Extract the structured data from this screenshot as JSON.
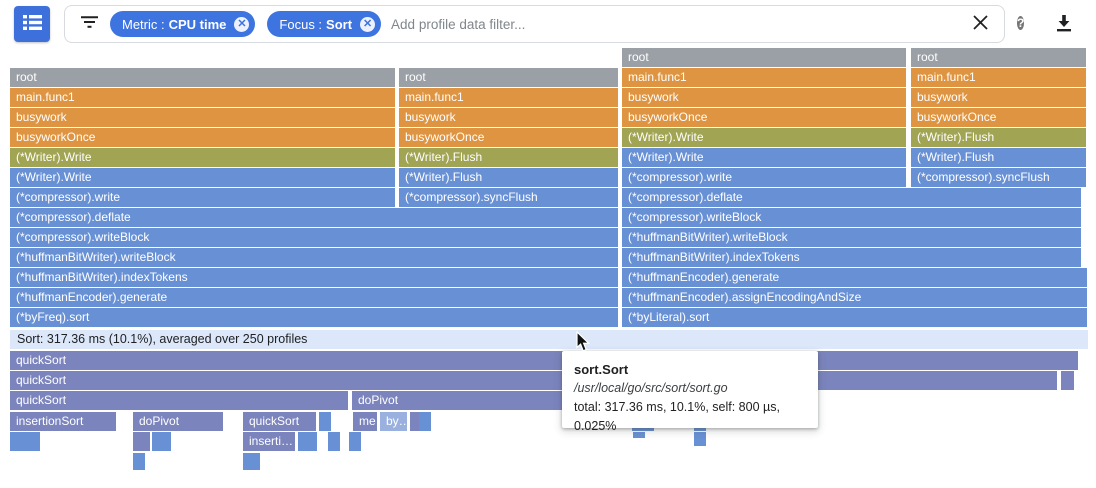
{
  "toolbar": {
    "menu_button": {
      "icon": "view-list-icon"
    },
    "filter_icon": "filter-list-icon",
    "chips": [
      {
        "prefix": "Metric :",
        "value": "CPU time",
        "remove_icon": "cancel-icon"
      },
      {
        "prefix": "Focus :",
        "value": "Sort",
        "remove_icon": "cancel-icon"
      }
    ],
    "filter_input": {
      "value": "",
      "placeholder": "Add profile data filter..."
    },
    "clear_button": "clear-icon",
    "help_button": "help-icon",
    "help_glyph": "?",
    "download_button": "download-icon"
  },
  "colors": {
    "button_blue": "#3e70dc",
    "chip_blue": "#3d74e0",
    "frame_gray": "#9aa0a6",
    "frame_orange": "#de9440",
    "frame_olive": "#a1a453",
    "frame_blue": "#6891d5",
    "frame_purple": "#7b84bd",
    "frame_lightblue": "#9ab1e0",
    "banner_bg": "#dce8f9"
  },
  "banner": {
    "text": "Sort: 317.36 ms (10.1%), averaged over 250 profiles"
  },
  "tooltip": {
    "title": "sort.Sort",
    "path": "/usr/local/go/src/sort/sort.go",
    "stats": "total: 317.36 ms, 10.1%, self: 800 µs, 0.025%"
  },
  "chart_data": {
    "type": "flame_graph",
    "metric": "CPU time",
    "focus": "Sort",
    "focused_frame": {
      "function": "sort.Sort",
      "total": "317.36 ms",
      "total_percent": 10.1,
      "self": "800 µs",
      "self_percent": 0.025,
      "profiles_averaged": 250
    },
    "frames": [
      [
        622,
        48,
        284,
        "g",
        "root"
      ],
      [
        911,
        48,
        175,
        "g",
        "root"
      ],
      [
        622,
        68,
        284,
        "o",
        "main.func1"
      ],
      [
        911,
        68,
        175,
        "o",
        "main.func1"
      ],
      [
        622,
        88,
        284,
        "o",
        "busywork"
      ],
      [
        911,
        88,
        175,
        "o",
        "busywork"
      ],
      [
        622,
        108,
        284,
        "o",
        "busyworkOnce"
      ],
      [
        911,
        108,
        175,
        "o",
        "busyworkOnce"
      ],
      [
        622,
        128,
        284,
        "v",
        "(*Writer).Write"
      ],
      [
        911,
        128,
        175,
        "v",
        "(*Writer).Flush"
      ],
      [
        622,
        148,
        284,
        "b",
        "(*Writer).Write"
      ],
      [
        911,
        148,
        175,
        "b",
        "(*Writer).Flush"
      ],
      [
        622,
        168,
        284,
        "b",
        "(*compressor).write"
      ],
      [
        911,
        168,
        175,
        "b",
        "(*compressor).syncFlush"
      ],
      [
        622,
        188,
        459,
        "b",
        "(*compressor).deflate"
      ],
      [
        622,
        208,
        459,
        "b",
        "(*compressor).writeBlock"
      ],
      [
        622,
        228,
        459,
        "b",
        "(*huffmanBitWriter).writeBlock"
      ],
      [
        622,
        248,
        459,
        "b",
        "(*huffmanBitWriter).indexTokens"
      ],
      [
        622,
        268,
        465,
        "b",
        "(*huffmanEncoder).generate"
      ],
      [
        622,
        288,
        465,
        "b",
        "(*huffmanEncoder).assignEncodingAndSize"
      ],
      [
        622,
        308,
        465,
        "b",
        "(*byLiteral).sort"
      ],
      [
        10,
        68,
        385,
        "g",
        "root"
      ],
      [
        399,
        68,
        219,
        "g",
        "root"
      ],
      [
        10,
        88,
        385,
        "o",
        "main.func1"
      ],
      [
        399,
        88,
        219,
        "o",
        "main.func1"
      ],
      [
        10,
        108,
        385,
        "o",
        "busywork"
      ],
      [
        399,
        108,
        219,
        "o",
        "busywork"
      ],
      [
        10,
        128,
        385,
        "o",
        "busyworkOnce"
      ],
      [
        399,
        128,
        219,
        "o",
        "busyworkOnce"
      ],
      [
        10,
        148,
        385,
        "v",
        "(*Writer).Write"
      ],
      [
        399,
        148,
        219,
        "v",
        "(*Writer).Flush"
      ],
      [
        10,
        168,
        385,
        "b",
        "(*Writer).Write"
      ],
      [
        399,
        168,
        219,
        "b",
        "(*Writer).Flush"
      ],
      [
        10,
        188,
        385,
        "b",
        "(*compressor).write"
      ],
      [
        399,
        188,
        219,
        "b",
        "(*compressor).syncFlush"
      ],
      [
        10,
        208,
        608,
        "b",
        "(*compressor).deflate"
      ],
      [
        10,
        228,
        608,
        "b",
        "(*compressor).writeBlock"
      ],
      [
        10,
        248,
        608,
        "b",
        "(*huffmanBitWriter).writeBlock"
      ],
      [
        10,
        268,
        608,
        "b",
        "(*huffmanBitWriter).indexTokens"
      ],
      [
        10,
        288,
        608,
        "b",
        "(*huffmanEncoder).generate"
      ],
      [
        10,
        308,
        608,
        "b",
        "(*byFreq).sort"
      ],
      [
        10,
        351,
        1068,
        "p",
        "quickSort"
      ],
      [
        10,
        371,
        1047,
        "p",
        "quickSort"
      ],
      [
        1061,
        371,
        13,
        "p",
        ""
      ],
      [
        10,
        391,
        338,
        "p",
        "quickSort"
      ],
      [
        352,
        391,
        266,
        "p",
        "doPivot"
      ],
      [
        10,
        412,
        106,
        "p",
        "insertionSort"
      ],
      [
        133,
        412,
        90,
        "p",
        "doPivot"
      ],
      [
        243,
        412,
        73,
        "p",
        "quickSort"
      ],
      [
        319,
        412,
        4,
        "b",
        ""
      ],
      [
        353,
        412,
        24,
        "p",
        "me…"
      ],
      [
        380,
        412,
        27,
        "l",
        "by…"
      ],
      [
        410,
        412,
        7,
        "p",
        ""
      ],
      [
        419,
        412,
        5,
        "b",
        ""
      ],
      [
        632,
        412,
        8,
        "b",
        ""
      ],
      [
        642,
        412,
        5,
        "b",
        ""
      ],
      [
        694,
        412,
        3,
        "b",
        ""
      ],
      [
        10,
        432,
        10,
        "b",
        ""
      ],
      [
        21,
        432,
        6,
        "b",
        ""
      ],
      [
        28,
        432,
        9,
        "b",
        ""
      ],
      [
        133,
        432,
        17,
        "p",
        ""
      ],
      [
        152,
        432,
        6,
        "b",
        ""
      ],
      [
        159,
        432,
        4,
        "b",
        ""
      ],
      [
        243,
        432,
        52,
        "p",
        "inserti…"
      ],
      [
        298,
        432,
        5,
        "b",
        ""
      ],
      [
        305,
        432,
        5,
        "b",
        ""
      ],
      [
        328,
        432,
        4,
        "b",
        ""
      ],
      [
        349,
        432,
        5,
        "b",
        ""
      ],
      [
        633,
        432,
        7,
        "b",
        "",
        6
      ],
      [
        694,
        432,
        3,
        "b",
        "",
        14
      ],
      [
        133,
        453,
        4,
        "b",
        "",
        17
      ],
      [
        243,
        453,
        4,
        "b",
        "",
        17
      ],
      [
        248,
        453,
        4,
        "b",
        "",
        17
      ]
    ]
  }
}
